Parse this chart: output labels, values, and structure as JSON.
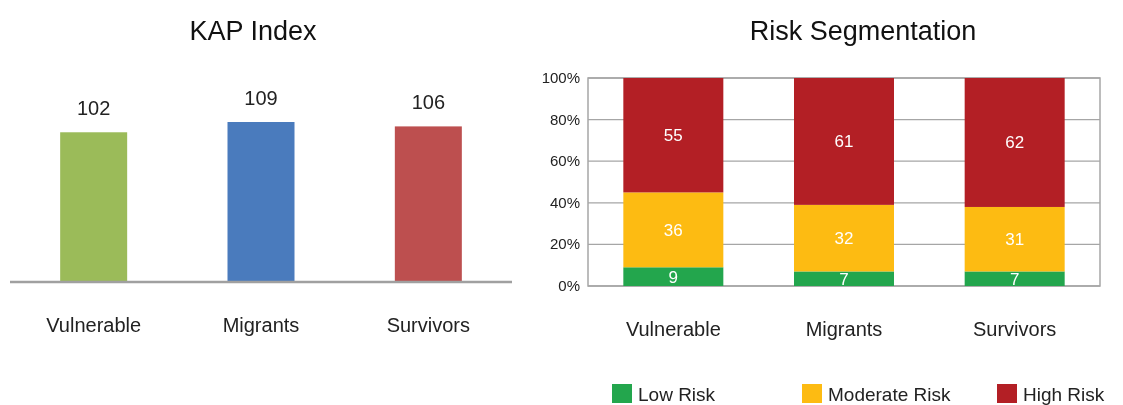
{
  "chart_data": [
    {
      "type": "bar",
      "title": "KAP Index",
      "categories": [
        "Vulnerable",
        "Migrants",
        "Survivors"
      ],
      "values": [
        102,
        109,
        106
      ],
      "colors": [
        "#9bbb59",
        "#4a7bbd",
        "#bd4f4f"
      ],
      "tick_labels": "x",
      "data_labels": true
    },
    {
      "type": "bar",
      "title": "Risk Segmentation",
      "categories": [
        "Vulnerable",
        "Migrants",
        "Survivors"
      ],
      "stacked": true,
      "series": [
        {
          "name": "Low Risk",
          "color": "#23a64d",
          "values": [
            9,
            7,
            7
          ]
        },
        {
          "name": "Moderate Risk",
          "color": "#fdbb12",
          "values": [
            36,
            32,
            31
          ]
        },
        {
          "name": "High Risk",
          "color": "#b31f25",
          "values": [
            55,
            61,
            62
          ]
        }
      ],
      "ylim": [
        0,
        100
      ],
      "yticks": [
        {
          "value": 0,
          "label": "0%"
        },
        {
          "value": 20,
          "label": "20%"
        },
        {
          "value": 40,
          "label": "40%"
        },
        {
          "value": 60,
          "label": "60%"
        },
        {
          "value": 80,
          "label": "80%"
        },
        {
          "value": 100,
          "label": "100%"
        }
      ],
      "grid": "y",
      "legend": "bottom",
      "data_labels": true
    }
  ]
}
